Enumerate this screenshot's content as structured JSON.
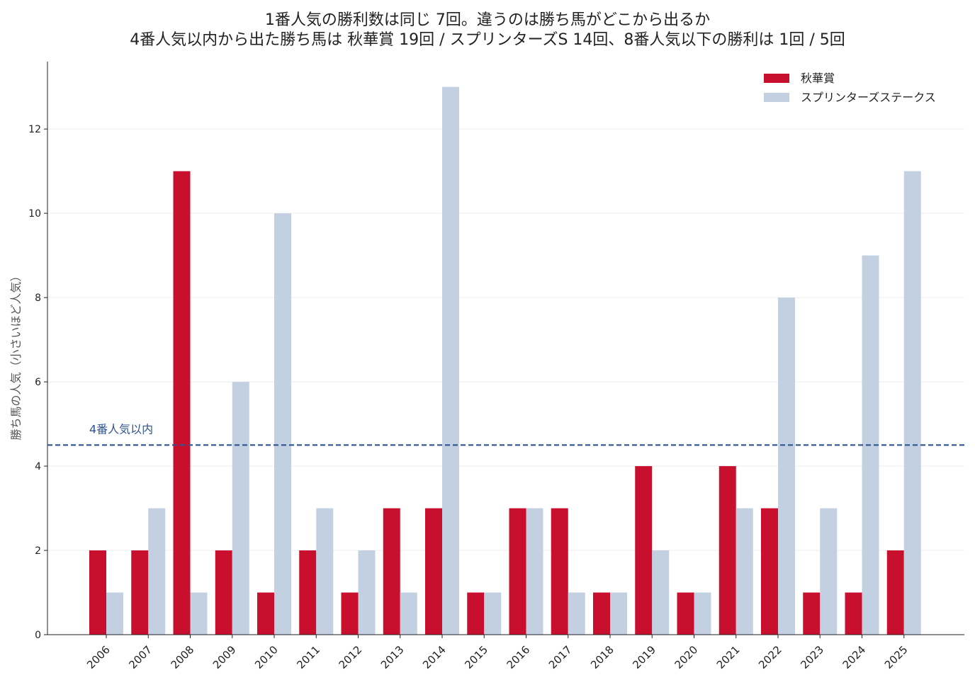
{
  "chart_data": {
    "type": "bar",
    "title_lines": [
      "1番人気の勝利数は同じ 7回。違うのは勝ち馬がどこから出るか",
      "4番人気以内から出た勝ち馬は 秋華賞 19回 / スプリンターズS 14回、8番人気以下の勝利は 1回 / 5回"
    ],
    "xlabel": "",
    "ylabel": "勝ち馬の人気（小さいほど人気）",
    "categories": [
      "2006",
      "2007",
      "2008",
      "2009",
      "2010",
      "2011",
      "2012",
      "2013",
      "2014",
      "2015",
      "2016",
      "2017",
      "2018",
      "2019",
      "2020",
      "2021",
      "2022",
      "2023",
      "2024",
      "2025"
    ],
    "series": [
      {
        "name": "秋華賞",
        "color": "#c8102e",
        "values": [
          2,
          2,
          11,
          2,
          1,
          2,
          1,
          3,
          3,
          1,
          3,
          3,
          1,
          4,
          1,
          4,
          3,
          1,
          1,
          2
        ]
      },
      {
        "name": "スプリンターズステークス",
        "color": "#c3d0e1",
        "values": [
          1,
          3,
          1,
          6,
          10,
          3,
          2,
          1,
          13,
          1,
          3,
          1,
          1,
          2,
          1,
          3,
          8,
          3,
          9,
          11
        ]
      }
    ],
    "ylim": [
      0,
      13.6
    ],
    "yticks": [
      0,
      2,
      4,
      6,
      8,
      10,
      12
    ],
    "grid": "horizontal",
    "legend": "top-right",
    "reference_line": {
      "y": 4.5,
      "label": "4番人気以内",
      "color": "#2f5590",
      "style": "dashed"
    }
  }
}
